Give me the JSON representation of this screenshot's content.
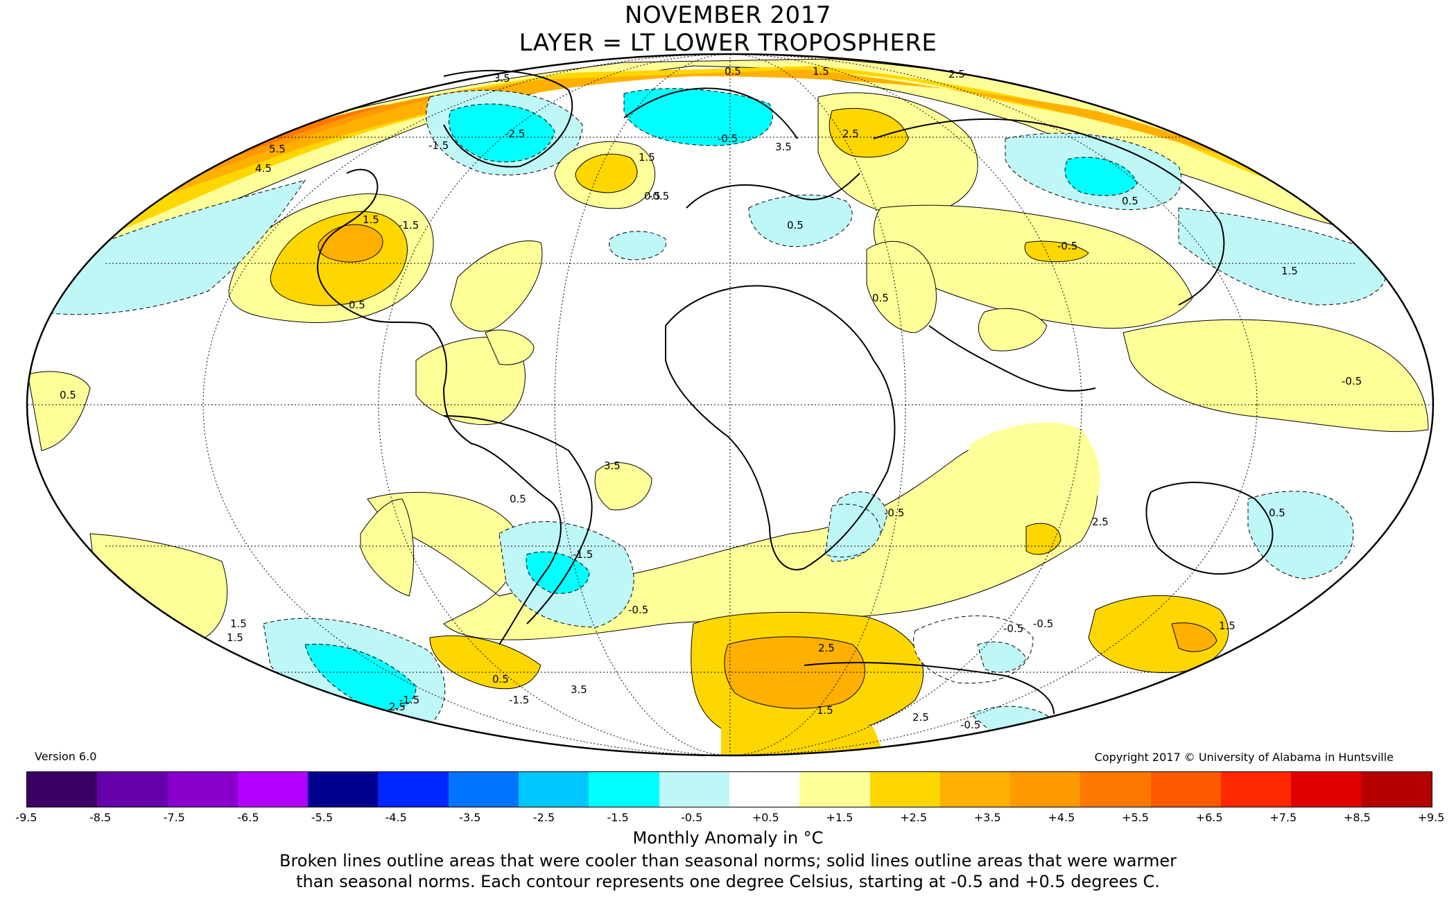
{
  "header": {
    "title_line1": "NOVEMBER 2017",
    "title_line2": "LAYER = LT LOWER TROPOSPHERE"
  },
  "footer": {
    "version": "Version 6.0",
    "copyright": "Copyright 2017 © University of Alabama in Huntsville"
  },
  "colorbar": {
    "colors": [
      "#3d0066",
      "#6600aa",
      "#8800cc",
      "#b400ff",
      "#00008f",
      "#0026ff",
      "#0073ff",
      "#00c8ff",
      "#00ffff",
      "#bff7f7",
      "#ffffff",
      "#ffff99",
      "#ffd700",
      "#ffb000",
      "#ff9900",
      "#ff7800",
      "#ff5a00",
      "#ff2800",
      "#e00000",
      "#b40000"
    ],
    "ticks": [
      "-9.5",
      "-8.5",
      "-7.5",
      "-6.5",
      "-5.5",
      "-4.5",
      "-3.5",
      "-2.5",
      "-1.5",
      "-0.5",
      "+0.5",
      "+1.5",
      "+2.5",
      "+3.5",
      "+4.5",
      "+5.5",
      "+6.5",
      "+7.5",
      "+8.5",
      "+9.5"
    ]
  },
  "legend": {
    "title": "Monthly Anomaly in °C",
    "line1": "Broken lines outline areas that were cooler than seasonal norms; solid lines outline areas that were warmer",
    "line2": "than seasonal norms. Each contour represents one degree Celsius, starting at -0.5 and +0.5 degrees C."
  },
  "map": {
    "projection": "Mollweide",
    "contour_labels": [
      "3.5",
      "1.5",
      "0.5",
      "2.5",
      "4.5",
      "5.5",
      "-1.5",
      "-2.5",
      "-0.5",
      "0.5",
      "1.5",
      "3.5",
      "2.5",
      "-0.5",
      "1.5",
      "0.5",
      "-1.5",
      "0.5",
      "-0.5",
      "0.5",
      "0.5",
      "1.5",
      "-0.5",
      "0.5",
      "-1.5",
      "-0.5",
      "0.5",
      "1.5",
      "3.5",
      "2.5",
      "-0.5",
      "-0.5",
      "1.5",
      "2.5",
      "1.5",
      "-1.5",
      "-1.5",
      "0.5",
      "-0.5",
      "0.5",
      "-0.5",
      "2.5",
      "1.5",
      "2.5",
      "3.5"
    ]
  }
}
